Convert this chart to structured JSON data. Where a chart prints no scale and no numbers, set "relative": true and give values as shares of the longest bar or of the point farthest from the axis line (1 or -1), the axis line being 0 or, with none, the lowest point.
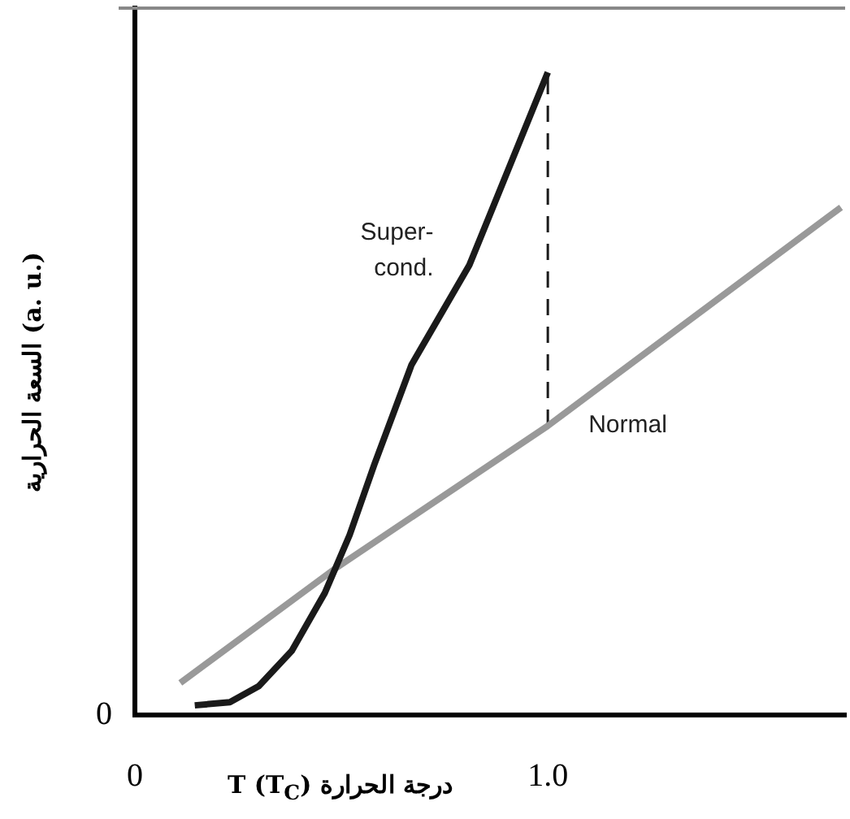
{
  "chart_data": {
    "type": "line",
    "relative": true,
    "xlabel": "T (T$_{C}$) درجة الحرارة",
    "ylabel": "السعة الحرارية (a. u.)",
    "xlim": [
      0,
      1.72
    ],
    "xticks": [
      0,
      {
        "value": 1,
        "label": "1.0"
      }
    ],
    "annotations": [
      "0"
    ],
    "series": [
      {
        "name": "Super-\ncond.",
        "color": "#1a1a1a",
        "x": [
          0.145,
          0.23,
          0.3,
          0.38,
          0.46,
          0.52,
          0.58,
          0.67,
          0.81,
          1.0
        ],
        "values": [
          0.015,
          0.02,
          0.045,
          0.1,
          0.19,
          0.28,
          0.39,
          0.545,
          0.7,
          1.0
        ]
      },
      {
        "name": "Normal",
        "color": "#999999",
        "x": [
          0.11,
          0.49,
          1.0,
          1.71
        ],
        "values": [
          0.05,
          0.23,
          0.45,
          0.79
        ]
      },
      {
        "color": "#1a1a1a",
        "line_style": "dashed",
        "x": [
          1,
          1
        ],
        "values": [
          0.45,
          1.0
        ]
      }
    ]
  }
}
